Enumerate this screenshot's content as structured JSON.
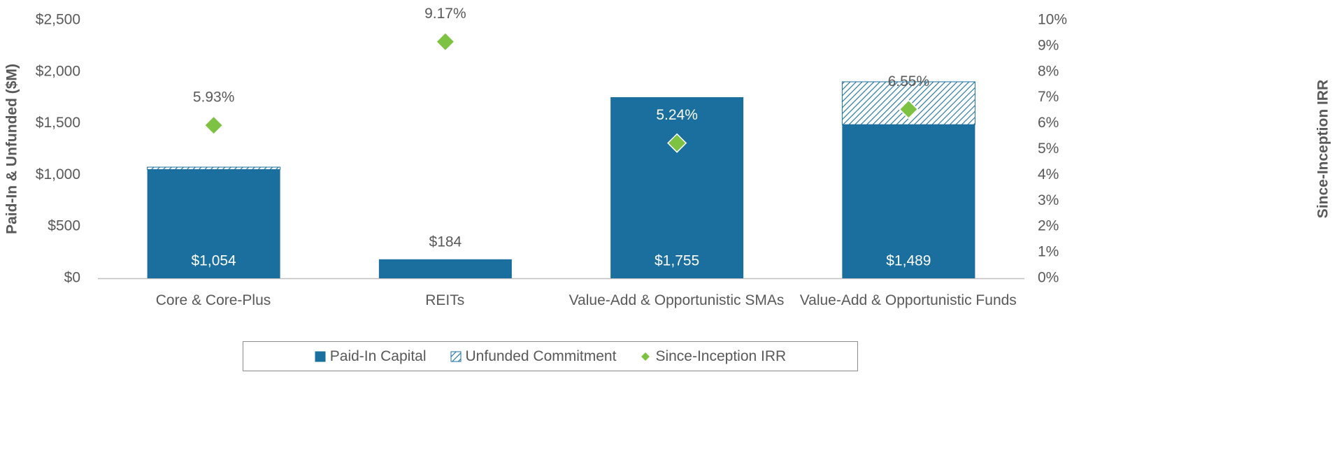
{
  "chart_data": {
    "type": "bar",
    "categories": [
      "Core & Core-Plus",
      "REITs",
      "Value-Add & Opportunistic SMAs",
      "Value-Add & Opportunistic Funds"
    ],
    "series": [
      {
        "name": "Paid-In Capital",
        "color": "#1a6f9e",
        "values": [
          1054,
          184,
          1755,
          1489
        ],
        "value_labels": [
          "$1,054",
          "$184",
          "$1,755",
          "$1,489"
        ]
      },
      {
        "name": "Unfunded Commitment",
        "color": "#1a6f9e",
        "pattern": "hatch",
        "values": [
          23,
          0,
          0,
          415
        ]
      },
      {
        "name": "Since-Inception IRR",
        "color": "#7dc242",
        "type": "scatter",
        "axis": "y2",
        "values": [
          5.93,
          9.17,
          5.24,
          6.55
        ],
        "value_labels": [
          "5.93%",
          "9.17%",
          "5.24%",
          "6.55%"
        ]
      }
    ],
    "ylabel": "Paid-In & Unfunded ($M)",
    "y2label": "Since-Inception IRR",
    "ylim": [
      0,
      2500
    ],
    "yticks": [
      {
        "value": 0,
        "label": "$0"
      },
      {
        "value": 500,
        "label": "$500"
      },
      {
        "value": 1000,
        "label": "$1,000"
      },
      {
        "value": 1500,
        "label": "$1,500"
      },
      {
        "value": 2000,
        "label": "$2,000"
      },
      {
        "value": 2500,
        "label": "$2,500"
      }
    ],
    "y2lim": [
      0,
      10
    ],
    "y2ticks": [
      {
        "value": 0,
        "label": "0%"
      },
      {
        "value": 1,
        "label": "1%"
      },
      {
        "value": 2,
        "label": "2%"
      },
      {
        "value": 3,
        "label": "3%"
      },
      {
        "value": 4,
        "label": "4%"
      },
      {
        "value": 5,
        "label": "5%"
      },
      {
        "value": 6,
        "label": "6%"
      },
      {
        "value": 7,
        "label": "7%"
      },
      {
        "value": 8,
        "label": "8%"
      },
      {
        "value": 9,
        "label": "9%"
      },
      {
        "value": 10,
        "label": "10%"
      }
    ],
    "legend": "bottom",
    "grid": false
  }
}
